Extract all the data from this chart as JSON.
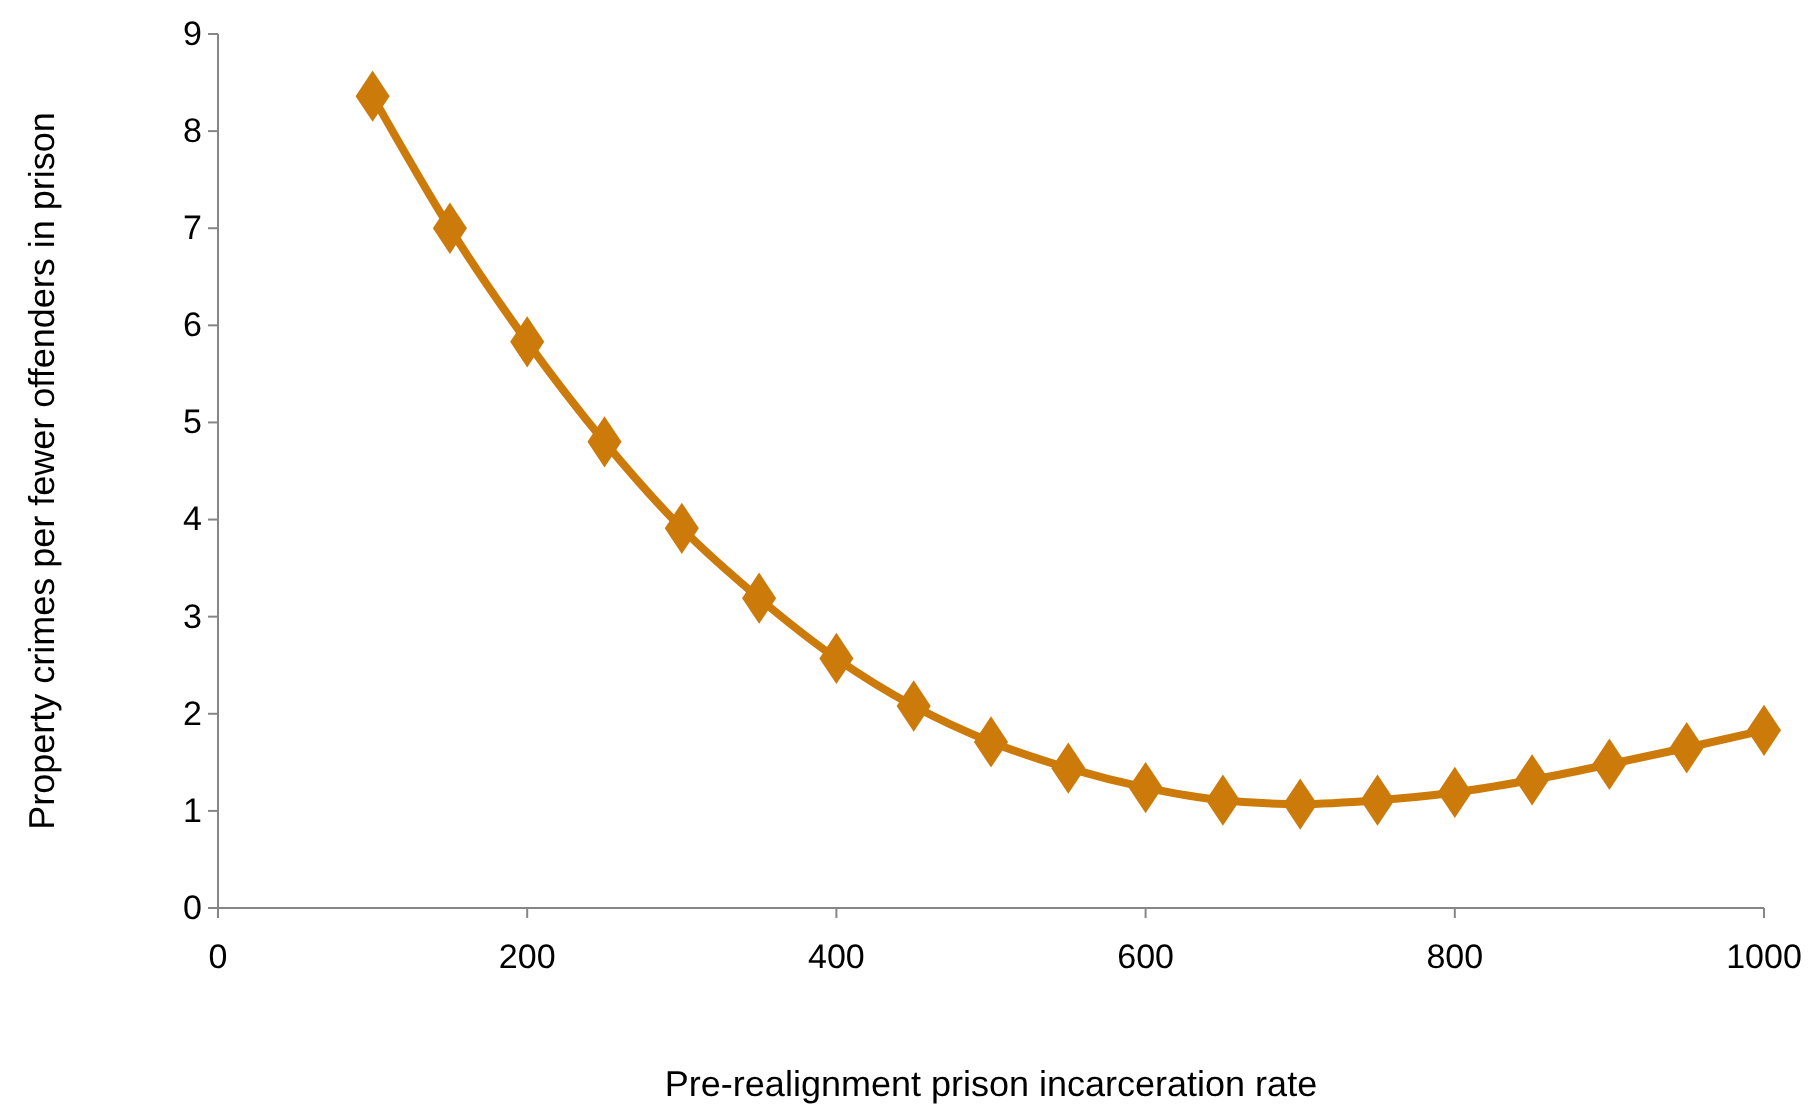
{
  "chart_data": {
    "type": "line",
    "xlabel": "Pre-realignment prison incarceration rate",
    "ylabel": "Property crimes per fewer offenders in prison",
    "x": [
      100,
      150,
      200,
      250,
      300,
      350,
      400,
      450,
      500,
      550,
      600,
      650,
      700,
      750,
      800,
      850,
      900,
      950,
      1000
    ],
    "series": [
      {
        "color": "#cc7a0a",
        "values": [
          8.36,
          7.0,
          5.83,
          4.8,
          3.91,
          3.19,
          2.57,
          2.08,
          1.71,
          1.44,
          1.24,
          1.11,
          1.07,
          1.11,
          1.19,
          1.32,
          1.48,
          1.65,
          1.83
        ]
      }
    ],
    "xlim": [
      0,
      1000
    ],
    "xticks": [
      0,
      200,
      400,
      600,
      800,
      1000
    ],
    "ylim": [
      0,
      9
    ],
    "yticks": [
      0,
      1,
      2,
      3,
      4,
      5,
      6,
      7,
      8,
      9
    ],
    "marker": "diamond",
    "line_style": "solid"
  }
}
